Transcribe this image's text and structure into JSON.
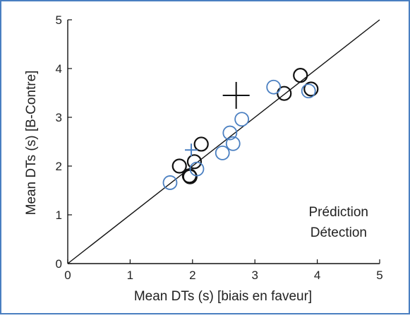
{
  "chart_data": {
    "type": "scatter",
    "xlabel": "Mean DTs (s) [biais en faveur]",
    "ylabel": "Mean DTs (s) [B-Contre]",
    "xlim": [
      0,
      5
    ],
    "ylim": [
      0,
      5
    ],
    "xticks": [
      "0",
      "1",
      "2",
      "3",
      "4",
      "5"
    ],
    "yticks": [
      "0",
      "1",
      "2",
      "3",
      "4",
      "5"
    ],
    "grid": false,
    "legend_position": "bottom-right",
    "identity_line": true,
    "series": [
      {
        "name": "Prédiction",
        "color": "#111111",
        "marker": "circle",
        "points": [
          {
            "x": 1.79,
            "y": 2.0
          },
          {
            "x": 1.95,
            "y": 1.8
          },
          {
            "x": 1.96,
            "y": 1.78
          },
          {
            "x": 2.03,
            "y": 2.09
          },
          {
            "x": 2.14,
            "y": 2.45
          },
          {
            "x": 3.47,
            "y": 3.49
          },
          {
            "x": 3.73,
            "y": 3.86
          },
          {
            "x": 3.9,
            "y": 3.58
          }
        ],
        "mean_marker": {
          "x": 2.7,
          "y": 3.45
        }
      },
      {
        "name": "Détection",
        "color": "#4a7fc1",
        "marker": "circle",
        "points": [
          {
            "x": 1.64,
            "y": 1.66
          },
          {
            "x": 2.07,
            "y": 1.94
          },
          {
            "x": 2.48,
            "y": 2.27
          },
          {
            "x": 2.65,
            "y": 2.46
          },
          {
            "x": 2.6,
            "y": 2.68
          },
          {
            "x": 2.79,
            "y": 2.96
          },
          {
            "x": 3.3,
            "y": 3.62
          },
          {
            "x": 3.86,
            "y": 3.54
          }
        ],
        "mean_marker": {
          "x": 1.98,
          "y": 2.33
        }
      }
    ]
  }
}
